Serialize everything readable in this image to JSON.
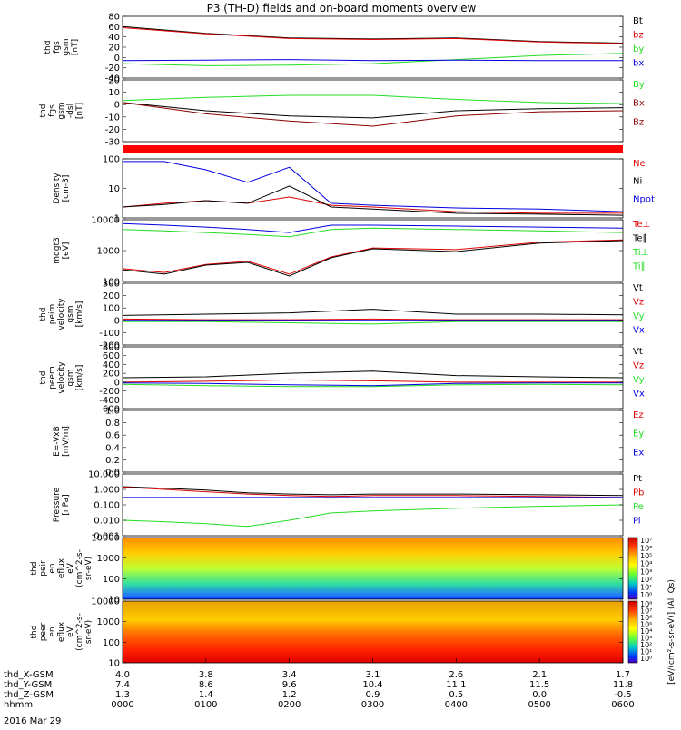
{
  "title": "P3 (TH-D) fields and on-board moments overview",
  "date_label": "2016 Mar 29",
  "cbar_unit": "[eV/(cm²-s-sr-eV)] (All Qs)",
  "colors": {
    "black": "#000000",
    "red": "#e00000",
    "green": "#22dd22",
    "blue": "#0000e0",
    "darkred": "#8b0000",
    "mode_bar": "#ff0000"
  },
  "x_axis": {
    "rows": [
      {
        "label": "thd_X-GSM",
        "values": [
          "4.0",
          "3.8",
          "3.4",
          "3.1",
          "2.6",
          "2.1",
          "1.7"
        ]
      },
      {
        "label": "thd_Y-GSM",
        "values": [
          "7.4",
          "8.6",
          "9.6",
          "10.4",
          "11.1",
          "11.5",
          "11.8"
        ]
      },
      {
        "label": "thd_Z-GSM",
        "values": [
          "1.3",
          "1.4",
          "1.2",
          "0.9",
          "0.5",
          "0.0",
          "-0.5"
        ]
      },
      {
        "label": "hhmm",
        "values": [
          "0000",
          "0100",
          "0200",
          "0300",
          "0400",
          "0500",
          "0600"
        ]
      }
    ]
  },
  "chart_data": [
    {
      "type": "line",
      "id": "fgs_gsm",
      "ylabel": [
        "thd",
        "fgs",
        "gsm",
        "[nT]"
      ],
      "yticks": [
        "80",
        "60",
        "40",
        "20",
        "0",
        "-20",
        "-40"
      ],
      "ylim": [
        -40,
        80
      ],
      "legend": [
        "Bt",
        "bz",
        "by",
        "bx"
      ],
      "x": [
        0,
        1,
        2,
        3,
        4,
        5,
        6
      ],
      "series": [
        {
          "name": "Bt",
          "color": "black",
          "values": [
            60,
            47,
            38,
            36,
            38,
            31,
            28
          ]
        },
        {
          "name": "bz",
          "color": "red",
          "values": [
            58,
            46,
            37,
            35,
            37,
            30,
            27
          ]
        },
        {
          "name": "by",
          "color": "green",
          "values": [
            -12,
            -16,
            -15,
            -12,
            -4,
            4,
            8
          ]
        },
        {
          "name": "bx",
          "color": "blue",
          "values": [
            -6,
            -5,
            -4,
            -6,
            -5,
            -6,
            -6
          ]
        }
      ]
    },
    {
      "type": "line",
      "id": "fgs_gsm_dsl",
      "ylabel": [
        "thd",
        "fgs",
        "gsm",
        "-dsl",
        "[nT]"
      ],
      "yticks": [
        "20",
        "10",
        "0",
        "-10",
        "-20",
        "-30"
      ],
      "ylim": [
        -35,
        25
      ],
      "legend": [
        "By",
        "Bx",
        "Bz"
      ],
      "x": [
        0,
        1,
        2,
        3,
        4,
        5,
        6
      ],
      "series": [
        {
          "name": "By",
          "color": "green",
          "values": [
            5,
            8,
            10,
            10,
            6,
            3,
            2
          ]
        },
        {
          "name": "Bx",
          "color": "black",
          "values": [
            3,
            -5,
            -10,
            -12,
            -5,
            -3,
            -2
          ]
        },
        {
          "name": "Bz",
          "color": "darkred",
          "values": [
            3,
            -8,
            -15,
            -20,
            -10,
            -6,
            -5
          ]
        }
      ]
    },
    {
      "type": "line",
      "id": "density",
      "ylog": true,
      "ylabel": [
        "Density",
        "[cm-3]"
      ],
      "yticks": [
        "100",
        "10",
        "1"
      ],
      "ylim": [
        0.3,
        200
      ],
      "legend": [
        "Ne",
        "Ni",
        "Npot"
      ],
      "x": [
        0,
        0.5,
        1,
        1.5,
        2,
        2.5,
        3,
        4,
        5,
        6
      ],
      "series": [
        {
          "name": "Ne",
          "color": "red",
          "values": [
            1.0,
            1.5,
            2,
            1.5,
            3,
            1.2,
            1.0,
            0.6,
            0.5,
            0.5
          ]
        },
        {
          "name": "Ni",
          "color": "black",
          "values": [
            1.0,
            1.3,
            2,
            1.5,
            10,
            1.0,
            0.8,
            0.5,
            0.45,
            0.4
          ]
        },
        {
          "name": "Npot",
          "color": "blue",
          "values": [
            150,
            150,
            60,
            15,
            80,
            1.5,
            1.2,
            0.9,
            0.8,
            0.6
          ]
        }
      ]
    },
    {
      "type": "line",
      "id": "mom_temperature",
      "ylog": true,
      "ylabel": [
        "mqgt3",
        "[eV]"
      ],
      "yticks": [
        "10000",
        "1000",
        "100"
      ],
      "ylim": [
        30,
        10000
      ],
      "legend": [
        "Te⊥",
        "Te∥",
        "Ti⊥",
        "Ti∥"
      ],
      "x": [
        0,
        0.5,
        1,
        1.5,
        2,
        2.5,
        3,
        4,
        5,
        6
      ],
      "series": [
        {
          "name": "Te⊥",
          "color": "red",
          "values": [
            100,
            70,
            150,
            200,
            60,
            300,
            700,
            600,
            1200,
            1500
          ]
        },
        {
          "name": "Te∥",
          "color": "black",
          "values": [
            90,
            60,
            140,
            180,
            50,
            280,
            650,
            500,
            1100,
            1400
          ]
        },
        {
          "name": "Ti⊥",
          "color": "blue",
          "values": [
            7000,
            6000,
            5000,
            4000,
            3000,
            6000,
            6000,
            5500,
            5000,
            4500
          ]
        },
        {
          "name": "Ti∥",
          "color": "green",
          "values": [
            4000,
            3500,
            3000,
            2500,
            2000,
            4000,
            4500,
            4000,
            3500,
            3000
          ]
        }
      ]
    },
    {
      "type": "line",
      "id": "peim_velocity",
      "ylabel": [
        "thd",
        "peim",
        "velocity",
        "gsm",
        "[km/s]"
      ],
      "yticks": [
        "300",
        "200",
        "100",
        "0",
        "-100",
        "-200"
      ],
      "ylim": [
        -200,
        300
      ],
      "legend": [
        "Vt",
        "Vz",
        "Vy",
        "Vx"
      ],
      "x": [
        0,
        1,
        2,
        3,
        4,
        5,
        6
      ],
      "series": [
        {
          "name": "Vt",
          "color": "black",
          "values": [
            40,
            50,
            60,
            90,
            50,
            50,
            45
          ]
        },
        {
          "name": "Vz",
          "color": "red",
          "values": [
            10,
            5,
            5,
            10,
            5,
            5,
            5
          ]
        },
        {
          "name": "Vy",
          "color": "green",
          "values": [
            -10,
            -10,
            -20,
            -30,
            -10,
            -10,
            -10
          ]
        },
        {
          "name": "Vx",
          "color": "blue",
          "values": [
            0,
            0,
            0,
            0,
            0,
            0,
            0
          ]
        }
      ]
    },
    {
      "type": "line",
      "id": "peem_velocity",
      "ylabel": [
        "thd",
        "peem",
        "velocity",
        "gsm",
        "[km/s]"
      ],
      "yticks": [
        "800",
        "600",
        "400",
        "200",
        "0",
        "-200",
        "-400",
        "-600"
      ],
      "ylim": [
        -600,
        800
      ],
      "legend": [
        "Vt",
        "Vz",
        "Vy",
        "Vx"
      ],
      "x": [
        0,
        1,
        2,
        3,
        4,
        5,
        6
      ],
      "series": [
        {
          "name": "Vt",
          "color": "black",
          "values": [
            100,
            120,
            200,
            250,
            150,
            120,
            100
          ]
        },
        {
          "name": "Vz",
          "color": "red",
          "values": [
            0,
            20,
            50,
            30,
            0,
            0,
            0
          ]
        },
        {
          "name": "Vy",
          "color": "green",
          "values": [
            -50,
            -80,
            -100,
            -100,
            -60,
            -50,
            -60
          ]
        },
        {
          "name": "Vx",
          "color": "blue",
          "values": [
            -20,
            -30,
            -60,
            -80,
            -30,
            -20,
            -20
          ]
        }
      ]
    },
    {
      "type": "line",
      "id": "efield",
      "ylabel": [
        "E=-VxB",
        "[mV/m]"
      ],
      "yticks": [
        "1.0",
        "0.8",
        "0.6",
        "0.4",
        "0.2",
        "0.0"
      ],
      "ylim": [
        0,
        1
      ],
      "legend": [
        "Ez",
        "Ey",
        "Ex"
      ],
      "x": [],
      "series": []
    },
    {
      "type": "line",
      "id": "pressure",
      "ylog": true,
      "ylabel": [
        "Pressure",
        "[nPa]"
      ],
      "yticks": [
        "10.000",
        "1.000",
        "0.100",
        "0.010",
        "0.001"
      ],
      "ylim": [
        0.001,
        10
      ],
      "legend": [
        "Pt",
        "Pb",
        "Pe",
        "Pi"
      ],
      "x": [
        0,
        0.5,
        1,
        1.5,
        2,
        2.5,
        3,
        4,
        5,
        6
      ],
      "series": [
        {
          "name": "Pt",
          "color": "black",
          "values": [
            1.5,
            1.2,
            0.9,
            0.6,
            0.5,
            0.45,
            0.5,
            0.5,
            0.45,
            0.4
          ]
        },
        {
          "name": "Pb",
          "color": "red",
          "values": [
            1.4,
            1.0,
            0.7,
            0.5,
            0.4,
            0.35,
            0.4,
            0.4,
            0.35,
            0.3
          ]
        },
        {
          "name": "Pe",
          "color": "green",
          "values": [
            0.01,
            0.008,
            0.006,
            0.004,
            0.01,
            0.03,
            0.04,
            0.06,
            0.08,
            0.1
          ]
        },
        {
          "name": "Pi",
          "color": "blue",
          "values": [
            0.3,
            0.3,
            0.3,
            0.3,
            0.3,
            0.3,
            0.3,
            0.3,
            0.3,
            0.3
          ]
        }
      ]
    },
    {
      "type": "heatmap",
      "id": "peir_en_eflux",
      "ylabel": [
        "thd",
        "peir",
        "en",
        "eflux",
        "eV",
        "(cm^2-s-",
        "sr-eV)"
      ],
      "yticks": [
        "10000",
        "1000",
        "100",
        "10"
      ],
      "cbar_ticks": [
        "10⁷",
        "10⁶",
        "10⁵",
        "10⁴",
        "10³",
        "10²",
        "10¹",
        "10⁰"
      ]
    },
    {
      "type": "heatmap",
      "id": "peer_en_eflux",
      "ylabel": [
        "thd",
        "peer",
        "en",
        "eflux",
        "eV",
        "(cm^2-s-",
        "sr-eV)"
      ],
      "yticks": [
        "10000",
        "1000",
        "100",
        "10"
      ],
      "cbar_ticks": [
        "10⁸",
        "10⁷",
        "10⁶",
        "10⁵",
        "10⁴",
        "10³",
        "10²",
        "10¹",
        "10⁰"
      ]
    }
  ]
}
